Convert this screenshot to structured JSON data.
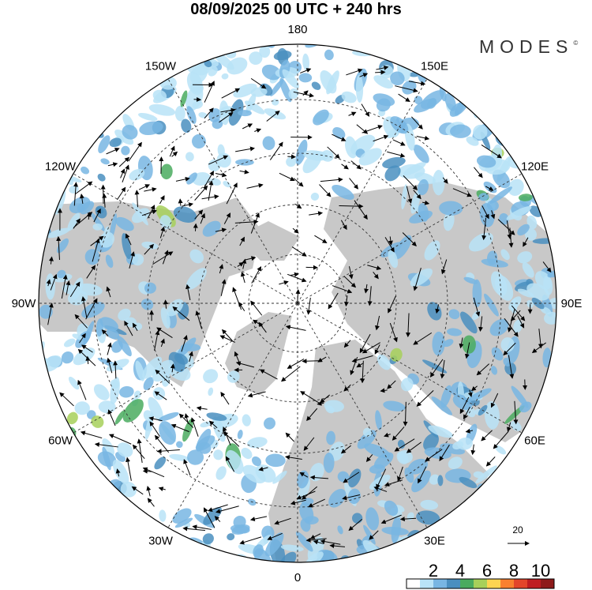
{
  "title": "08/09/2025  00 UTC  + 240 hrs",
  "logo": {
    "text": "MODES",
    "mark": "©"
  },
  "longitude_labels": [
    {
      "label": "0",
      "lon": 0
    },
    {
      "label": "30E",
      "lon": 30
    },
    {
      "label": "60E",
      "lon": 60
    },
    {
      "label": "90E",
      "lon": 90
    },
    {
      "label": "120E",
      "lon": 120
    },
    {
      "label": "150E",
      "lon": 150
    },
    {
      "label": "180",
      "lon": 180
    },
    {
      "label": "150W",
      "lon": -150
    },
    {
      "label": "120W",
      "lon": -120
    },
    {
      "label": "90W",
      "lon": -90
    },
    {
      "label": "60W",
      "lon": -60
    },
    {
      "label": "30W",
      "lon": -30
    }
  ],
  "reference_vector": {
    "label": "20"
  },
  "colorbar": {
    "labels": [
      "2",
      "4",
      "6",
      "8",
      "10"
    ],
    "colors": [
      "#ffffff",
      "#b9e3f7",
      "#78b6e3",
      "#4a8fbf",
      "#4aab5f",
      "#a7d05a",
      "#fdd451",
      "#f9802f",
      "#e3452b",
      "#bf1d22",
      "#8e1a1a"
    ]
  },
  "colors": {
    "land": "#c8c8c8",
    "ocean": "#ffffff",
    "grid": "#333333"
  }
}
